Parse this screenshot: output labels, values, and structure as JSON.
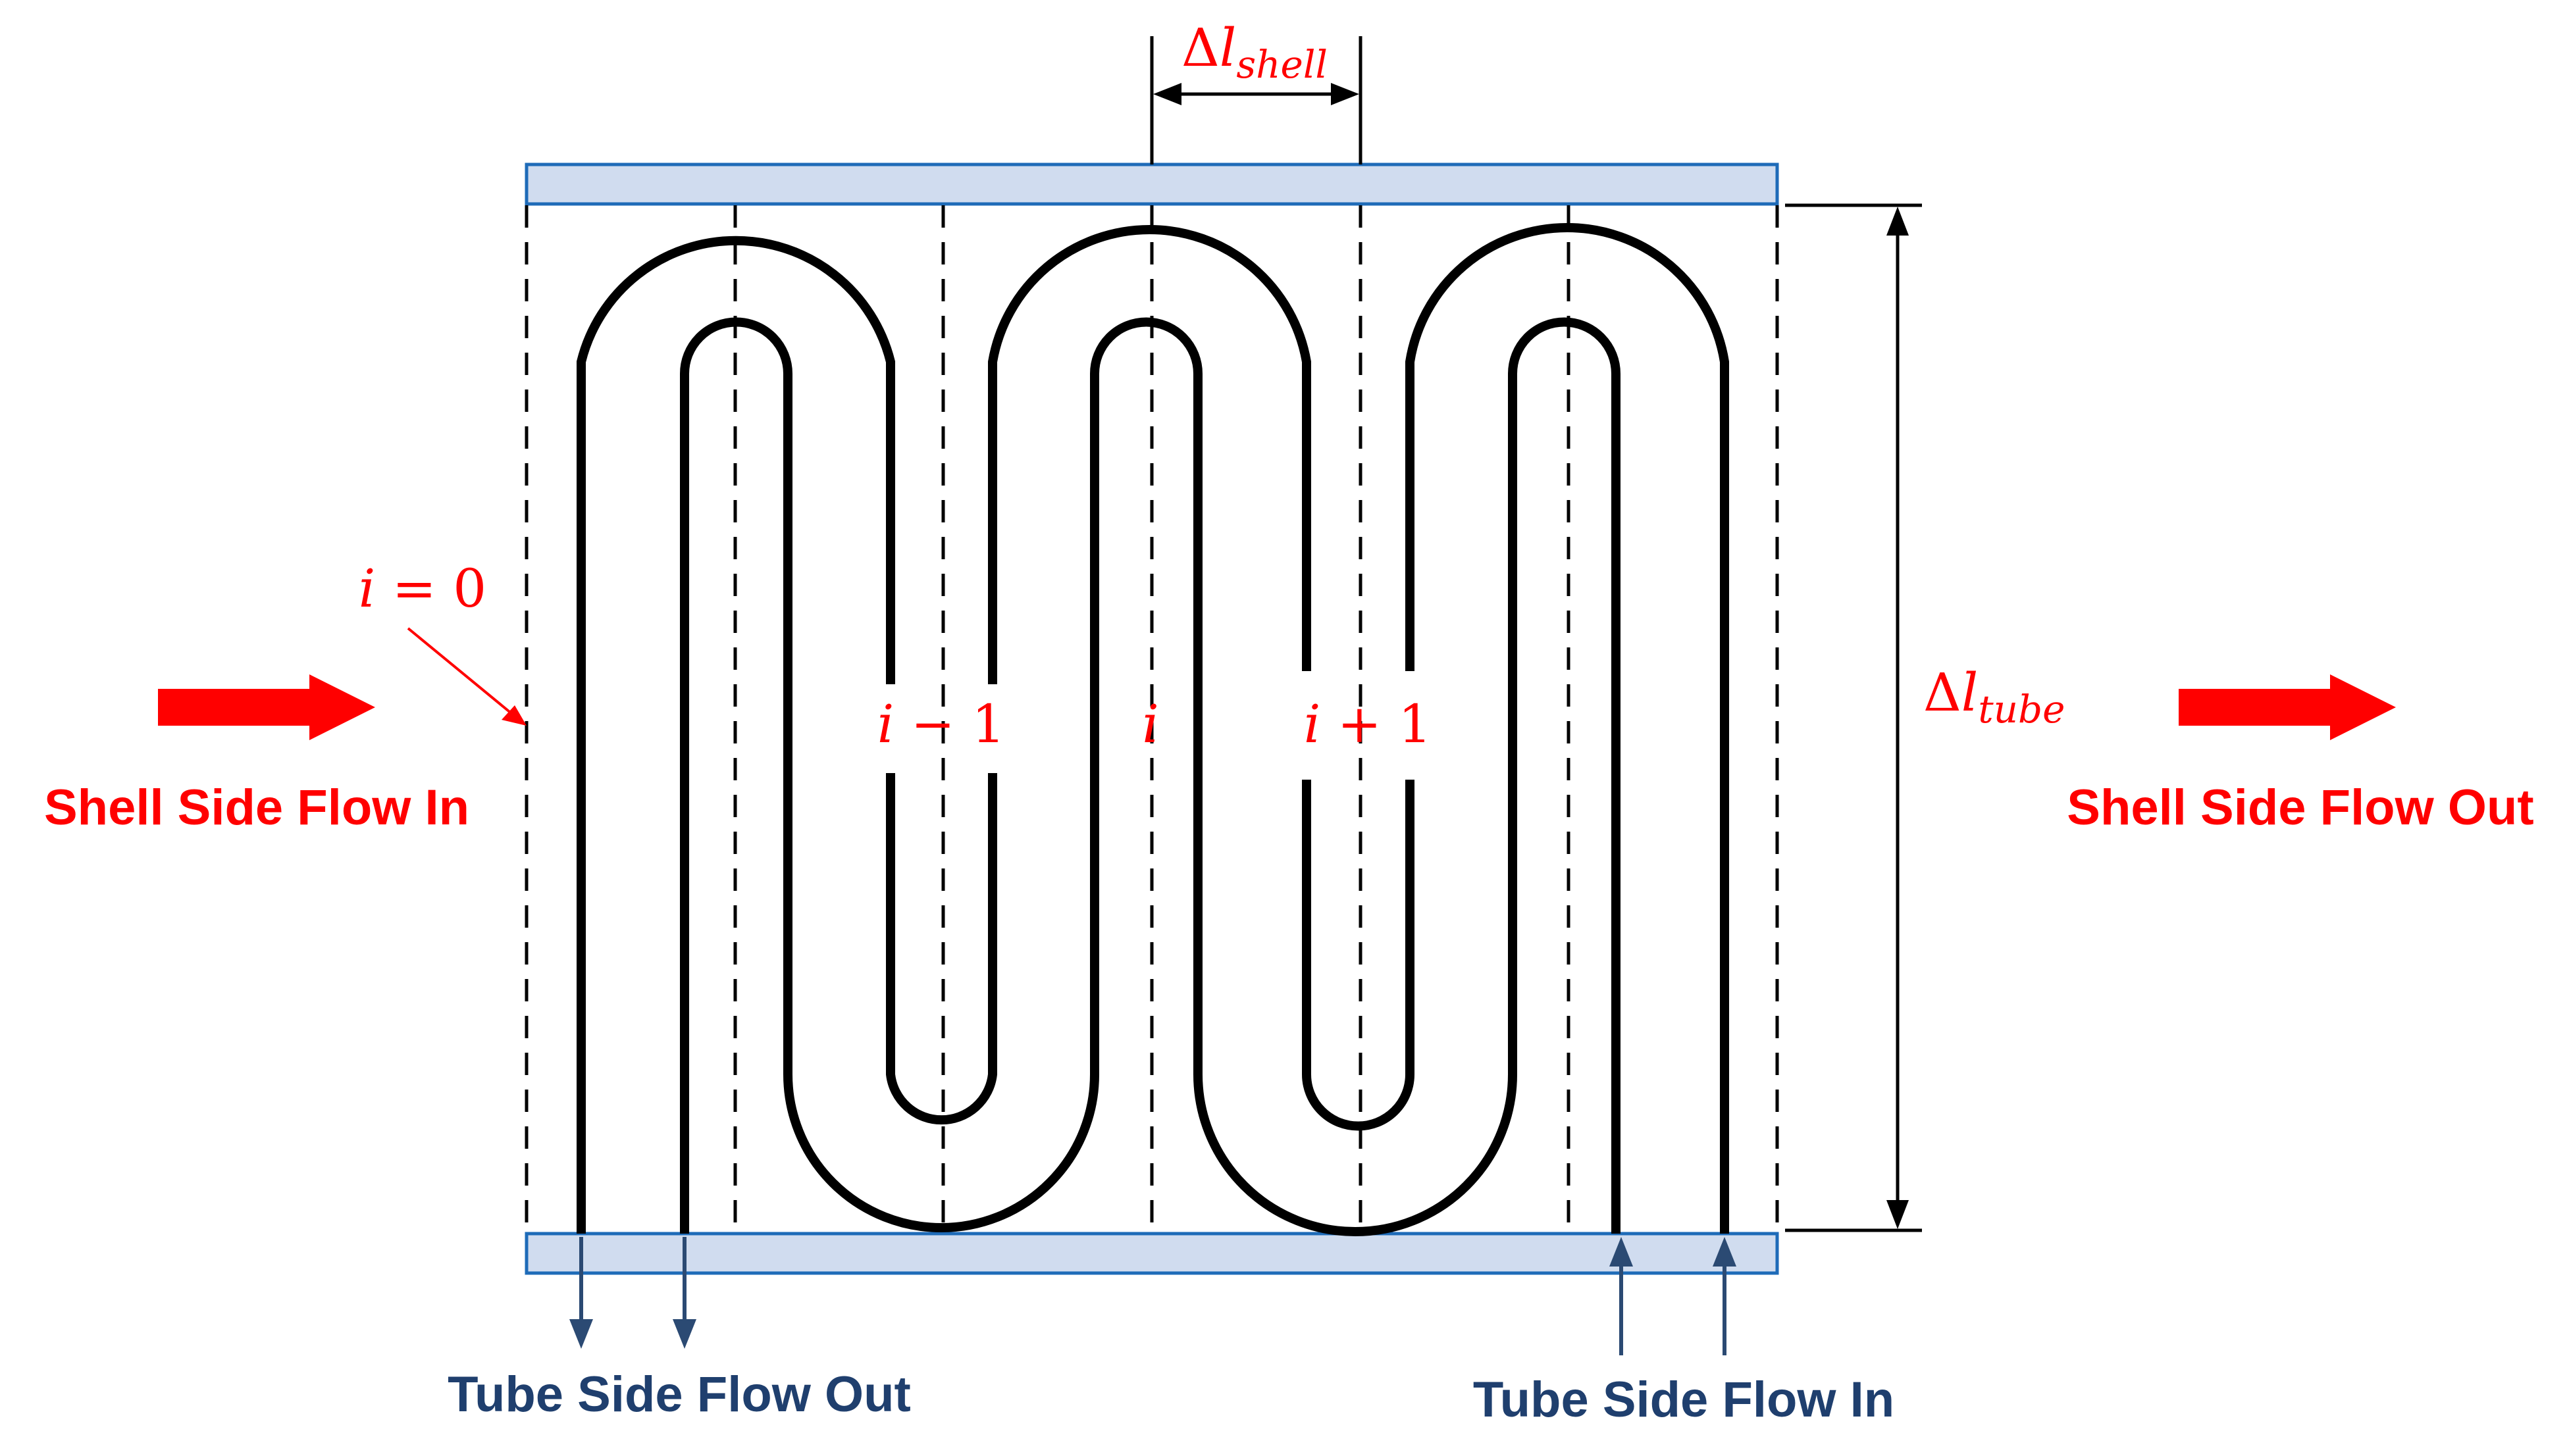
{
  "labels": {
    "shell_in": "Shell Side Flow In",
    "shell_out": "Shell Side Flow Out",
    "tube_out": "Tube Side Flow Out",
    "tube_in": "Tube Side Flow In",
    "i_zero_var": "i",
    "i_zero_rest": " = 0",
    "i_minus_var": "i",
    "i_minus_rest": " − 1",
    "i_center": "i",
    "i_plus_var": "i",
    "i_plus_rest": " + 1",
    "delta": "Δ",
    "l": "l",
    "shell_sub": "shell",
    "tube_sub": "tube"
  },
  "colors": {
    "label_red": "#ff0000",
    "label_navy": "#1f3f6e",
    "plate_fill": "#d0dcef",
    "plate_stroke": "#1e6bb8"
  },
  "icons": [
    "red-block-arrow-right",
    "navy-arrow-down",
    "navy-arrow-up"
  ]
}
